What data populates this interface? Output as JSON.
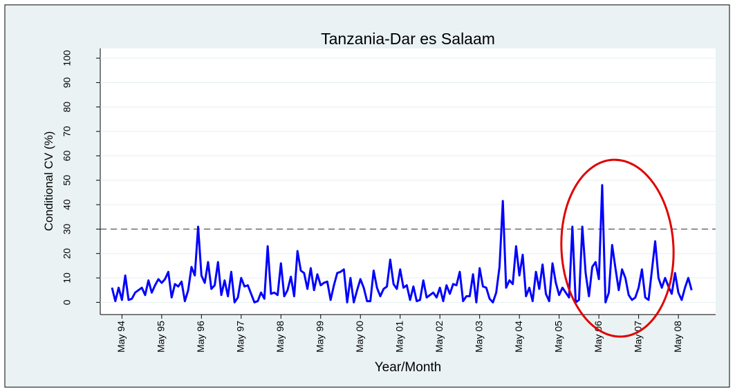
{
  "chart_data": {
    "type": "line",
    "title": "Tanzania-Dar es Salaam",
    "x_label": "Year/Month",
    "y_label": "Conditional CV (%)",
    "color": "#0000ff",
    "reference_line": {
      "value": 30,
      "color": "#555555"
    },
    "grid": true,
    "ylim": [
      -5,
      104
    ],
    "yticks": [
      0,
      10,
      20,
      30,
      40,
      50,
      60,
      70,
      80,
      90,
      100
    ],
    "categories": [
      null,
      null,
      null,
      "May 94",
      null,
      null,
      null,
      null,
      null,
      null,
      null,
      null,
      null,
      null,
      null,
      "May 95",
      null,
      null,
      null,
      null,
      null,
      null,
      null,
      null,
      null,
      null,
      null,
      "May 96",
      null,
      null,
      null,
      null,
      null,
      null,
      null,
      null,
      null,
      null,
      null,
      "May 97",
      null,
      null,
      null,
      null,
      null,
      null,
      null,
      null,
      null,
      null,
      null,
      "May 98",
      null,
      null,
      null,
      null,
      null,
      null,
      null,
      null,
      null,
      null,
      null,
      "May 99",
      null,
      null,
      null,
      null,
      null,
      null,
      null,
      null,
      null,
      null,
      null,
      "May 00",
      null,
      null,
      null,
      null,
      null,
      null,
      null,
      null,
      null,
      null,
      null,
      "May 01",
      null,
      null,
      null,
      null,
      null,
      null,
      null,
      null,
      null,
      null,
      null,
      "May 02",
      null,
      null,
      null,
      null,
      null,
      null,
      null,
      null,
      null,
      null,
      null,
      "May 03",
      null,
      null,
      null,
      null,
      null,
      null,
      null,
      null,
      null,
      null,
      null,
      "May 04",
      null,
      null,
      null,
      null,
      null,
      null,
      null,
      null,
      null,
      null,
      null,
      "May 05",
      null,
      null,
      null,
      null,
      null,
      null,
      null,
      null,
      null,
      null,
      null,
      "May 06",
      null,
      null,
      null,
      null,
      null,
      null,
      null,
      null,
      null,
      null,
      null,
      "May 07",
      null,
      null,
      null,
      null,
      null,
      null,
      null,
      null,
      null,
      null,
      null,
      "May 08",
      null,
      null,
      null,
      null
    ],
    "values": [
      6,
      0.5,
      6,
      1,
      11,
      1,
      1.5,
      4,
      5,
      6,
      3,
      9,
      4,
      7,
      9.5,
      8,
      9.5,
      12.5,
      2,
      7.5,
      6.5,
      8.5,
      0.5,
      5,
      14.5,
      11,
      31,
      11,
      8,
      16.5,
      5.5,
      7,
      16.5,
      3,
      9,
      2.5,
      12.5,
      0,
      2,
      10,
      6.5,
      7,
      3.5,
      0,
      0.5,
      4,
      1.5,
      23,
      3.5,
      4,
      3,
      16,
      2.5,
      5,
      10.5,
      2.5,
      21,
      13,
      12,
      5.5,
      14,
      5,
      11.5,
      7,
      8,
      8.5,
      1,
      7,
      12,
      12.5,
      13.5,
      0,
      10,
      0,
      5,
      9.5,
      6,
      0.5,
      0.5,
      13,
      6,
      2.5,
      5.5,
      6.5,
      17.5,
      7.5,
      5.5,
      13.5,
      6,
      7,
      1,
      6.5,
      0.5,
      1,
      9,
      2,
      3,
      4,
      2,
      6,
      0.5,
      7,
      3.5,
      7.5,
      7,
      12.5,
      0.5,
      2.5,
      2.5,
      11.5,
      0,
      14,
      6.5,
      6,
      1.5,
      0,
      4,
      14.5,
      41.5,
      6,
      9,
      7.5,
      23,
      11,
      19.5,
      2.5,
      6,
      0.5,
      12.5,
      5.5,
      15.5,
      3.5,
      0.5,
      16,
      8,
      3,
      6,
      4,
      2,
      31,
      0,
      1,
      31,
      12,
      2.5,
      14.5,
      16.5,
      9.5,
      48,
      0,
      4,
      23.5,
      14,
      5,
      13.5,
      10,
      3,
      1,
      2,
      6,
      13.5,
      2,
      1,
      13,
      25,
      10,
      6,
      10,
      6.5,
      3.5,
      12,
      4,
      1,
      6,
      10,
      5
    ]
  }
}
